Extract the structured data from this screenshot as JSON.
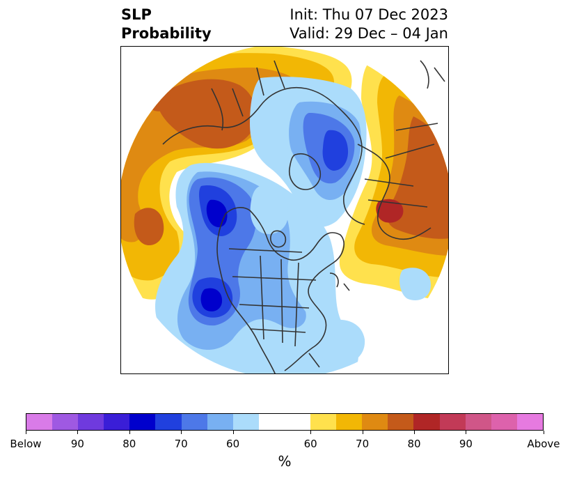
{
  "title": {
    "left_line1": "SLP",
    "left_line2": "Probability",
    "init": "Init: Thu 07 Dec 2023",
    "valid": "Valid: 29 Dec – 04 Jan"
  },
  "colorbar": {
    "unit": "%",
    "segments": [
      {
        "color": "#d97be8"
      },
      {
        "color": "#9f59e2"
      },
      {
        "color": "#6f3ade"
      },
      {
        "color": "#3a1ed7"
      },
      {
        "color": "#0000cc"
      },
      {
        "color": "#2040de"
      },
      {
        "color": "#4d78e8"
      },
      {
        "color": "#78b0f2"
      },
      {
        "color": "#abdcfb"
      },
      {
        "color": "#ffffff"
      },
      {
        "color": "#ffe14d"
      },
      {
        "color": "#f2b705"
      },
      {
        "color": "#df8a12"
      },
      {
        "color": "#c45a1a"
      },
      {
        "color": "#b02626"
      },
      {
        "color": "#c23a57"
      },
      {
        "color": "#d05688"
      },
      {
        "color": "#dd62ac"
      },
      {
        "color": "#e67ae0"
      }
    ],
    "tick_labels": [
      "Below",
      "90",
      "80",
      "70",
      "60",
      "60",
      "70",
      "80",
      "90",
      "Above"
    ]
  },
  "map": {
    "fill_colors": {
      "light_blue": "#abdcfb",
      "mid_blue": "#78b0f2",
      "blue": "#4d78e8",
      "strong_blue": "#2040de",
      "deep_blue": "#0000cc",
      "yellow": "#ffe14d",
      "gold": "#f2b705",
      "orange": "#df8a12",
      "burnt_orange": "#c45a1a",
      "red": "#b02626",
      "coastline": "#333333"
    }
  }
}
